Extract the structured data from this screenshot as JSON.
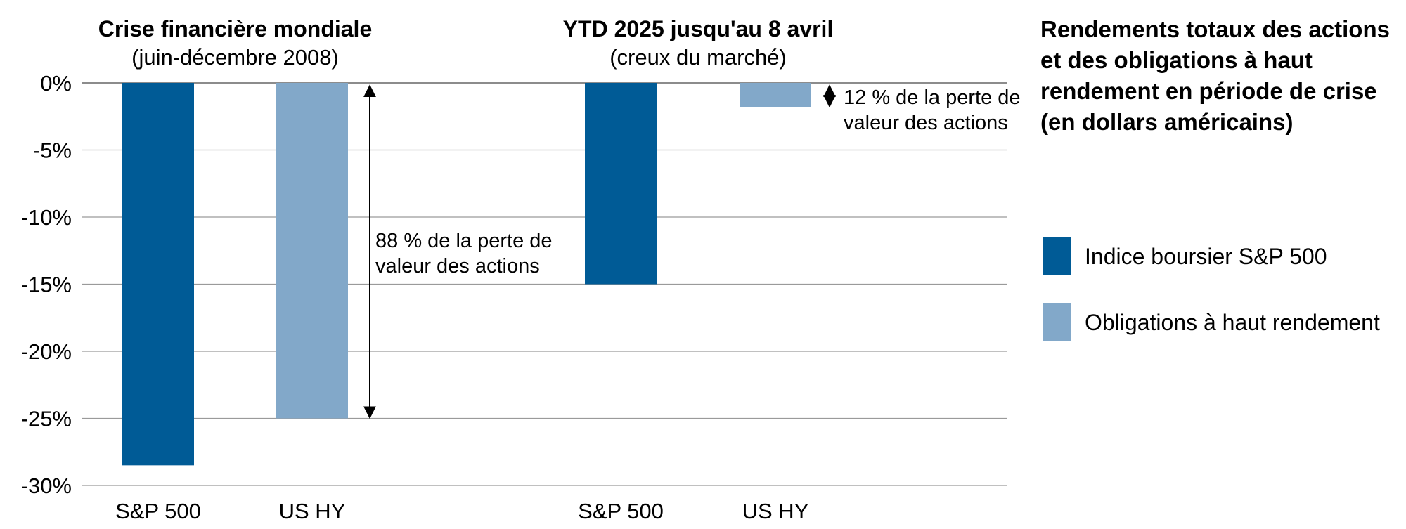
{
  "chart_data": {
    "type": "bar",
    "legend_title": "Rendements totaux des actions et des obligations à haut rendement en période de crise (en dollars américains)",
    "legend_placement": "right",
    "grid": true,
    "ylim": [
      -30,
      0
    ],
    "yticks": [
      0,
      -5,
      -10,
      -15,
      -20,
      -25,
      -30
    ],
    "ytick_labels": [
      "0%",
      "-5%",
      "-10%",
      "-15%",
      "-20%",
      "-25%",
      "-30%"
    ],
    "colors": {
      "sp500": "#005b96",
      "us_hy": "#82a8c9"
    },
    "series_legend": [
      {
        "name": "Indice boursier S&P 500",
        "color": "#005b96"
      },
      {
        "name": "Obligations à haut rendement",
        "color": "#82a8c9"
      }
    ],
    "panels": [
      {
        "title": "Crise financière mondiale",
        "subtitle": "(juin-décembre 2008)",
        "bars": [
          {
            "label": "S&P 500",
            "value": -28.5,
            "series": "sp500"
          },
          {
            "label": "US HY",
            "value": -25.0,
            "series": "us_hy"
          }
        ],
        "annotation": {
          "lines": [
            "88 % de la perte de",
            "valeur des actions"
          ]
        }
      },
      {
        "title": "YTD 2025 jusqu'au 8 avril",
        "subtitle": "(creux du marché)",
        "bars": [
          {
            "label": "S&P 500",
            "value": -15.0,
            "series": "sp500"
          },
          {
            "label": "US HY",
            "value": -1.8,
            "series": "us_hy"
          }
        ],
        "annotation": {
          "lines": [
            "12 % de la perte de",
            "valeur des actions"
          ]
        }
      }
    ]
  }
}
